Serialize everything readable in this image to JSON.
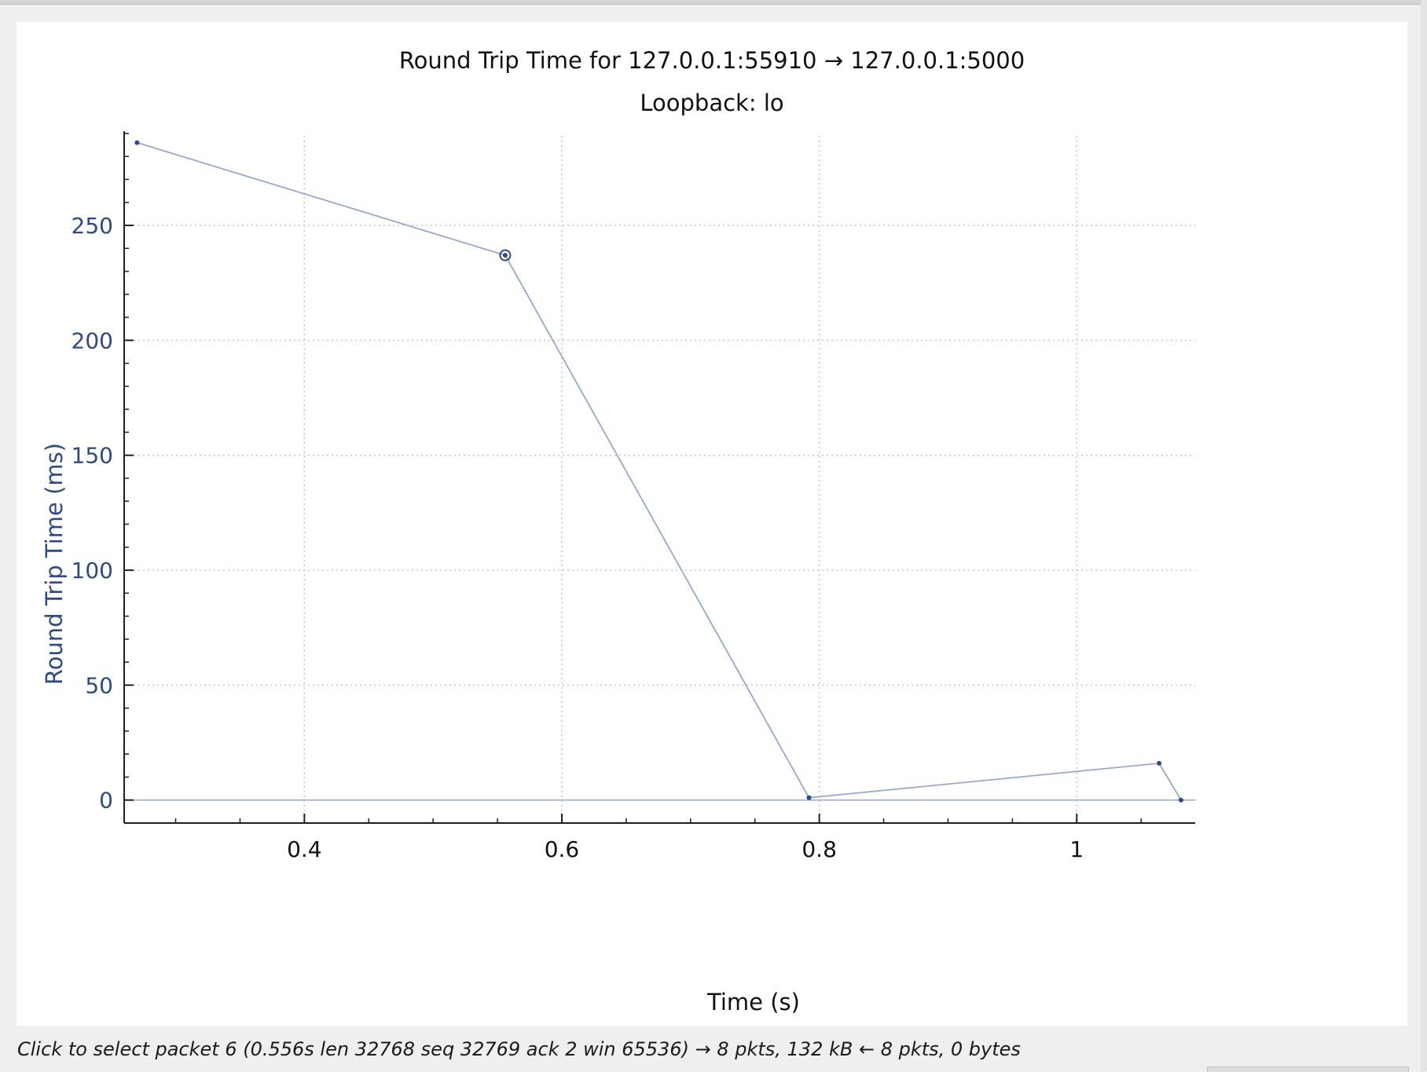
{
  "status_text": "Click to select packet 6 (0.556s len 32768 seq 32769 ack 2 win 65536) → 8 pkts, 132 kB ← 8 pkts, 0 bytes",
  "colors": {
    "accent": "#2e4a86",
    "line": "#97a8cd",
    "grid": "#c7c7c7",
    "axis": "#1f1f1f"
  },
  "chart_data": {
    "type": "line",
    "title": "Round Trip Time for 127.0.0.1:55910 → 127.0.0.1:5000",
    "subtitle": "Loopback: lo",
    "xlabel": "Time (s)",
    "ylabel": "Round Trip Time (ms)",
    "xlim": [
      0.26,
      1.092
    ],
    "ylim": [
      -10,
      291
    ],
    "xticks": [
      0.4,
      0.6,
      0.8,
      1
    ],
    "xtick_labels": [
      "0.4",
      "0.6",
      "0.8",
      "1"
    ],
    "yticks": [
      0,
      50,
      100,
      150,
      200,
      250
    ],
    "ytick_labels": [
      "0",
      "50",
      "100",
      "150",
      "200",
      "250"
    ],
    "grid": true,
    "series": [
      {
        "x": [
          0.27,
          0.556,
          0.792,
          1.064,
          1.081
        ],
        "y": [
          286,
          237,
          1,
          16,
          0
        ]
      }
    ],
    "selected_point": {
      "x": 0.556,
      "y": 237
    }
  }
}
